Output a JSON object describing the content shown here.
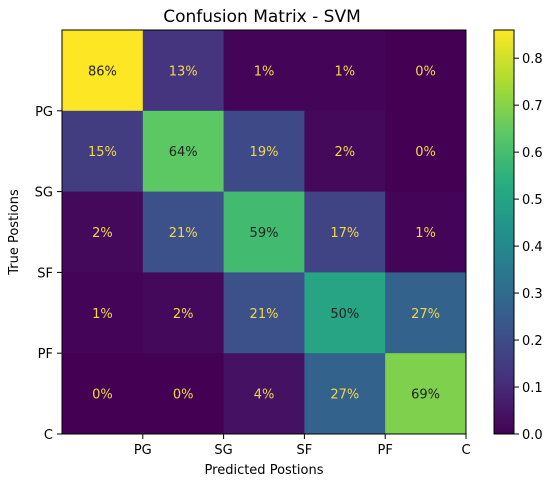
{
  "chart_data": {
    "type": "heatmap",
    "title": "Confusion Matrix - SVM",
    "xlabel": "Predicted Postions",
    "ylabel": "True Postions",
    "x_tick_labels": [
      "PG",
      "SG",
      "SF",
      "PF",
      "C"
    ],
    "y_tick_labels": [
      "PG",
      "SG",
      "SF",
      "PF",
      "C"
    ],
    "matrix": [
      [
        0.86,
        0.13,
        0.01,
        0.01,
        0.0
      ],
      [
        0.15,
        0.64,
        0.19,
        0.02,
        0.0
      ],
      [
        0.02,
        0.21,
        0.59,
        0.17,
        0.01
      ],
      [
        0.01,
        0.02,
        0.21,
        0.5,
        0.27
      ],
      [
        0.0,
        0.0,
        0.04,
        0.27,
        0.69
      ]
    ],
    "cell_labels": [
      [
        "86%",
        "13%",
        "1%",
        "1%",
        "0%"
      ],
      [
        "15%",
        "64%",
        "19%",
        "2%",
        "0%"
      ],
      [
        "2%",
        "21%",
        "59%",
        "17%",
        "1%"
      ],
      [
        "1%",
        "2%",
        "21%",
        "50%",
        "27%"
      ],
      [
        "0%",
        "0%",
        "4%",
        "27%",
        "69%"
      ]
    ],
    "colormap": "viridis",
    "colorbar": {
      "range": [
        0.0,
        0.86
      ],
      "ticks": [
        0.0,
        0.1,
        0.2,
        0.3,
        0.4,
        0.5,
        0.6,
        0.7,
        0.8
      ],
      "tick_labels": [
        "0.0",
        "0.1",
        "0.2",
        "0.3",
        "0.4",
        "0.5",
        "0.6",
        "0.7",
        "0.8"
      ]
    },
    "label_colors": {
      "on_dark": "#f0d848",
      "on_light": "#222222"
    }
  }
}
